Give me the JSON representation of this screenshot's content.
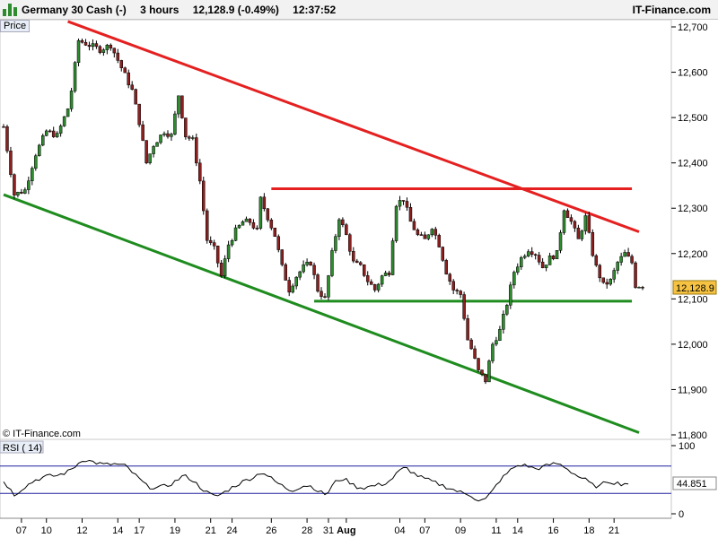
{
  "header": {
    "instrument": "Germany 30 Cash (-)",
    "timeframe": "3 hours",
    "quote": "12,128.9 (-0.49%)",
    "time": "12:37:52",
    "brand": "IT-Finance.com"
  },
  "price_panel_label": "Price",
  "watermark": "© IT-Finance.com",
  "rsi_label": "RSI ( 14)",
  "colors": {
    "bull": "#2e8b2e",
    "bear": "#8b2020",
    "resistance": "#e52020",
    "support": "#1e8c1e",
    "rsi_line": "#000000",
    "rsi_band": "#2020a0",
    "current_price_bg": "#f5c242"
  },
  "chart_data": [
    {
      "type": "candlestick",
      "title": "",
      "ylim": [
        11800,
        12700
      ],
      "yticks": [
        "12,700",
        "12,600",
        "12,500",
        "12,400",
        "12,300",
        "12,200",
        "12,100",
        "12,000",
        "11,900",
        "11,800"
      ],
      "ytick_values": [
        12700,
        12600,
        12500,
        12400,
        12300,
        12200,
        12100,
        12000,
        11900,
        11800
      ],
      "current_price_label": "12,128.9",
      "current_price": 12128.9,
      "path_anchors": [
        [
          0,
          12480
        ],
        [
          3,
          12330
        ],
        [
          6,
          12340
        ],
        [
          9,
          12420
        ],
        [
          12,
          12470
        ],
        [
          15,
          12460
        ],
        [
          18,
          12520
        ],
        [
          19,
          12560
        ],
        [
          21,
          12670
        ],
        [
          24,
          12660
        ],
        [
          27,
          12650
        ],
        [
          30,
          12660
        ],
        [
          33,
          12610
        ],
        [
          36,
          12560
        ],
        [
          38,
          12490
        ],
        [
          40,
          12400
        ],
        [
          42,
          12440
        ],
        [
          45,
          12470
        ],
        [
          47,
          12460
        ],
        [
          49,
          12550
        ],
        [
          51,
          12460
        ],
        [
          53,
          12450
        ],
        [
          55,
          12360
        ],
        [
          57,
          12230
        ],
        [
          59,
          12210
        ],
        [
          61,
          12150
        ],
        [
          63,
          12220
        ],
        [
          65,
          12250
        ],
        [
          67,
          12270
        ],
        [
          69,
          12270
        ],
        [
          71,
          12250
        ],
        [
          72,
          12320
        ],
        [
          74,
          12280
        ],
        [
          76,
          12240
        ],
        [
          78,
          12170
        ],
        [
          80,
          12120
        ],
        [
          82,
          12150
        ],
        [
          84,
          12170
        ],
        [
          86,
          12180
        ],
        [
          88,
          12120
        ],
        [
          90,
          12100
        ],
        [
          92,
          12200
        ],
        [
          94,
          12280
        ],
        [
          96,
          12240
        ],
        [
          98,
          12180
        ],
        [
          100,
          12170
        ],
        [
          102,
          12140
        ],
        [
          104,
          12120
        ],
        [
          106,
          12150
        ],
        [
          108,
          12160
        ],
        [
          110,
          12310
        ],
        [
          112,
          12320
        ],
        [
          114,
          12270
        ],
        [
          116,
          12240
        ],
        [
          118,
          12230
        ],
        [
          120,
          12260
        ],
        [
          122,
          12220
        ],
        [
          124,
          12160
        ],
        [
          126,
          12120
        ],
        [
          128,
          12110
        ],
        [
          130,
          12010
        ],
        [
          131,
          11990
        ],
        [
          133,
          11940
        ],
        [
          135,
          11920
        ],
        [
          137,
          12000
        ],
        [
          139,
          12030
        ],
        [
          141,
          12090
        ],
        [
          143,
          12160
        ],
        [
          145,
          12190
        ],
        [
          147,
          12210
        ],
        [
          149,
          12200
        ],
        [
          151,
          12170
        ],
        [
          153,
          12190
        ],
        [
          155,
          12200
        ],
        [
          157,
          12300
        ],
        [
          159,
          12270
        ],
        [
          161,
          12230
        ],
        [
          163,
          12280
        ],
        [
          165,
          12200
        ],
        [
          166,
          12170
        ],
        [
          168,
          12130
        ],
        [
          170,
          12140
        ],
        [
          172,
          12180
        ],
        [
          174,
          12200
        ],
        [
          176,
          12180
        ],
        [
          177,
          12130
        ],
        [
          179,
          12129
        ]
      ],
      "xticks": [
        {
          "label": "07",
          "i": 5
        },
        {
          "label": "10",
          "i": 12
        },
        {
          "label": "12",
          "i": 22
        },
        {
          "label": "14",
          "i": 32
        },
        {
          "label": "17",
          "i": 38
        },
        {
          "label": "19",
          "i": 48
        },
        {
          "label": "21",
          "i": 58
        },
        {
          "label": "24",
          "i": 64
        },
        {
          "label": "26",
          "i": 75
        },
        {
          "label": "28",
          "i": 85
        },
        {
          "label": "31",
          "i": 91
        },
        {
          "label": "Aug",
          "i": 96,
          "bold": true
        },
        {
          "label": "04",
          "i": 111
        },
        {
          "label": "07",
          "i": 118
        },
        {
          "label": "09",
          "i": 128
        },
        {
          "label": "11",
          "i": 138
        },
        {
          "label": "14",
          "i": 144
        },
        {
          "label": "16",
          "i": 154
        },
        {
          "label": "18",
          "i": 164
        },
        {
          "label": "21",
          "i": 171
        }
      ],
      "trendlines": [
        {
          "name": "descending-resistance",
          "color": "resistance",
          "from": [
            18,
            12712
          ],
          "to": [
            178,
            12248
          ]
        },
        {
          "name": "horizontal-resistance",
          "color": "resistance",
          "from": [
            75,
            12343
          ],
          "to": [
            176,
            12343
          ]
        },
        {
          "name": "ascending-support",
          "color": "support",
          "from": [
            0,
            12330
          ],
          "to": [
            178,
            11805
          ]
        },
        {
          "name": "horizontal-support",
          "color": "support",
          "from": [
            87,
            12095
          ],
          "to": [
            176,
            12095
          ]
        }
      ]
    },
    {
      "type": "line",
      "title": "RSI ( 14)",
      "ylim": [
        0,
        100
      ],
      "yticks": [
        "100",
        "0"
      ],
      "ytick_values": [
        100,
        0
      ],
      "bands": [
        70,
        30
      ],
      "current_value_label": "44.851",
      "current_value": 44.851,
      "path_anchors": [
        [
          0,
          48
        ],
        [
          3,
          28
        ],
        [
          6,
          40
        ],
        [
          9,
          50
        ],
        [
          12,
          55
        ],
        [
          15,
          56
        ],
        [
          18,
          62
        ],
        [
          20,
          70
        ],
        [
          22,
          80
        ],
        [
          25,
          76
        ],
        [
          28,
          72
        ],
        [
          31,
          73
        ],
        [
          34,
          70
        ],
        [
          37,
          55
        ],
        [
          40,
          40
        ],
        [
          43,
          38
        ],
        [
          46,
          42
        ],
        [
          48,
          48
        ],
        [
          50,
          56
        ],
        [
          52,
          52
        ],
        [
          55,
          38
        ],
        [
          57,
          30
        ],
        [
          59,
          25
        ],
        [
          61,
          30
        ],
        [
          64,
          40
        ],
        [
          67,
          48
        ],
        [
          70,
          55
        ],
        [
          72,
          62
        ],
        [
          74,
          54
        ],
        [
          76,
          46
        ],
        [
          78,
          40
        ],
        [
          80,
          34
        ],
        [
          82,
          38
        ],
        [
          84,
          42
        ],
        [
          86,
          40
        ],
        [
          88,
          32
        ],
        [
          90,
          28
        ],
        [
          92,
          45
        ],
        [
          94,
          52
        ],
        [
          96,
          48
        ],
        [
          98,
          40
        ],
        [
          100,
          38
        ],
        [
          102,
          40
        ],
        [
          104,
          42
        ],
        [
          106,
          44
        ],
        [
          108,
          50
        ],
        [
          110,
          62
        ],
        [
          112,
          68
        ],
        [
          114,
          60
        ],
        [
          116,
          54
        ],
        [
          118,
          50
        ],
        [
          120,
          46
        ],
        [
          122,
          42
        ],
        [
          124,
          38
        ],
        [
          126,
          34
        ],
        [
          128,
          30
        ],
        [
          130,
          28
        ],
        [
          132,
          20
        ],
        [
          134,
          20
        ],
        [
          136,
          32
        ],
        [
          138,
          48
        ],
        [
          140,
          58
        ],
        [
          142,
          68
        ],
        [
          144,
          72
        ],
        [
          146,
          70
        ],
        [
          148,
          66
        ],
        [
          150,
          68
        ],
        [
          152,
          72
        ],
        [
          154,
          74
        ],
        [
          156,
          70
        ],
        [
          158,
          62
        ],
        [
          160,
          55
        ],
        [
          162,
          50
        ],
        [
          164,
          42
        ],
        [
          166,
          40
        ],
        [
          168,
          48
        ],
        [
          170,
          46
        ],
        [
          172,
          44
        ],
        [
          174,
          45
        ]
      ]
    }
  ]
}
